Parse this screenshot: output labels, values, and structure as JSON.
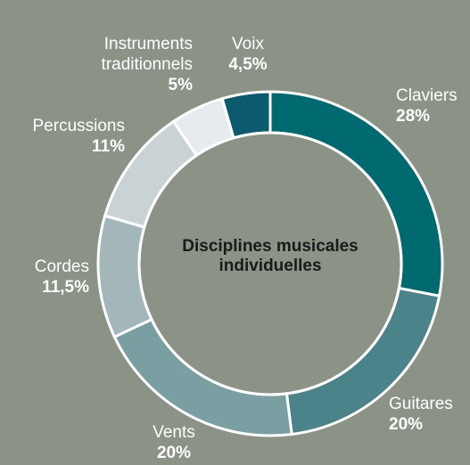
{
  "chart_data": {
    "type": "donut",
    "title": "Disciplines musicales individuelles",
    "categories": [
      "Claviers",
      "Guitares",
      "Vents",
      "Cordes",
      "Percussions",
      "Instruments traditionnels",
      "Voix"
    ],
    "values": [
      28,
      20,
      20,
      11.5,
      11,
      5,
      4.5
    ],
    "value_labels": [
      "28%",
      "20%",
      "20%",
      "11,5%",
      "11%",
      "5%",
      "4,5%"
    ],
    "colors": [
      "#006a70",
      "#4a8389",
      "#7a9fa3",
      "#a3b7ba",
      "#c9d3d5",
      "#e8ebed",
      "#0b5a6e"
    ]
  }
}
